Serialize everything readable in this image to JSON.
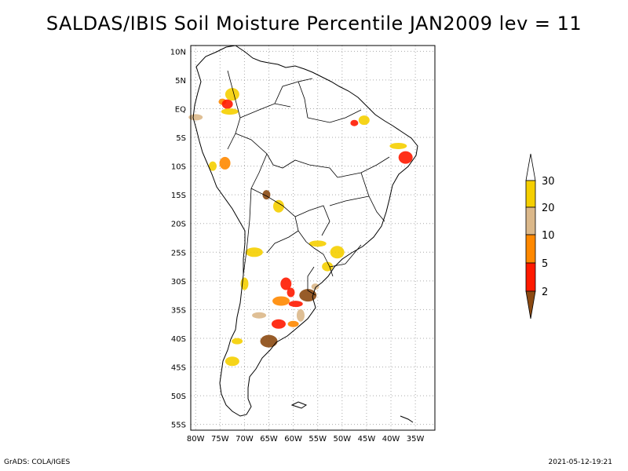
{
  "title": "SALDAS/IBIS Soil Moisture Percentile JAN2009 lev = 11",
  "footer": {
    "left": "GrADS: COLA/IGES",
    "right": "2021-05-12-19:21"
  },
  "map": {
    "region": "South America",
    "lon_range": [
      -81,
      -31
    ],
    "lat_range": [
      -56,
      11
    ],
    "lat_ticks": [
      {
        "value": 10,
        "label": "10N"
      },
      {
        "value": 5,
        "label": "5N"
      },
      {
        "value": 0,
        "label": "EQ"
      },
      {
        "value": -5,
        "label": "5S"
      },
      {
        "value": -10,
        "label": "10S"
      },
      {
        "value": -15,
        "label": "15S"
      },
      {
        "value": -20,
        "label": "20S"
      },
      {
        "value": -25,
        "label": "25S"
      },
      {
        "value": -30,
        "label": "30S"
      },
      {
        "value": -35,
        "label": "35S"
      },
      {
        "value": -40,
        "label": "40S"
      },
      {
        "value": -45,
        "label": "45S"
      },
      {
        "value": -50,
        "label": "50S"
      },
      {
        "value": -55,
        "label": "55S"
      }
    ],
    "lon_ticks": [
      {
        "value": -80,
        "label": "80W"
      },
      {
        "value": -75,
        "label": "75W"
      },
      {
        "value": -70,
        "label": "70W"
      },
      {
        "value": -65,
        "label": "65W"
      },
      {
        "value": -60,
        "label": "60W"
      },
      {
        "value": -55,
        "label": "55W"
      },
      {
        "value": -50,
        "label": "50W"
      },
      {
        "value": -45,
        "label": "45W"
      },
      {
        "value": -40,
        "label": "40W"
      },
      {
        "value": -35,
        "label": "35W"
      }
    ],
    "dry_regions": [
      {
        "lon": -74.5,
        "lat": 1.2,
        "level": 5
      },
      {
        "lon": -73.5,
        "lat": 0.8,
        "level": 2
      },
      {
        "lon": -72.5,
        "lat": 2.5,
        "level": 20
      },
      {
        "lon": -73.0,
        "lat": -0.5,
        "level": 30
      },
      {
        "lon": -60.5,
        "lat": -32.0,
        "level": 2
      },
      {
        "lon": -61.5,
        "lat": -30.5,
        "level": 2
      },
      {
        "lon": -59.5,
        "lat": -34.0,
        "level": 2
      },
      {
        "lon": -62.5,
        "lat": -33.5,
        "level": 5
      },
      {
        "lon": -58.5,
        "lat": -36.0,
        "level": 10
      },
      {
        "lon": -60.0,
        "lat": -37.5,
        "level": 5
      },
      {
        "lon": -63.0,
        "lat": -37.5,
        "level": 2
      },
      {
        "lon": -57.0,
        "lat": -32.5,
        "level": 0
      },
      {
        "lon": -55.5,
        "lat": -31.0,
        "level": 10
      },
      {
        "lon": -53.0,
        "lat": -27.5,
        "level": 20
      },
      {
        "lon": -51.0,
        "lat": -25.0,
        "level": 20
      },
      {
        "lon": -55.0,
        "lat": -23.5,
        "level": 30
      },
      {
        "lon": -65.5,
        "lat": -15.0,
        "level": 0
      },
      {
        "lon": -63.0,
        "lat": -17.0,
        "level": 20
      },
      {
        "lon": -67.0,
        "lat": -36.0,
        "level": 10
      },
      {
        "lon": -68.0,
        "lat": -25.0,
        "level": 20
      },
      {
        "lon": -70.0,
        "lat": -30.5,
        "level": 30
      },
      {
        "lon": -71.5,
        "lat": -40.5,
        "level": 20
      },
      {
        "lon": -72.5,
        "lat": -44.0,
        "level": 30
      },
      {
        "lon": -65.0,
        "lat": -40.5,
        "level": 0
      },
      {
        "lon": -47.5,
        "lat": -2.5,
        "level": 2
      },
      {
        "lon": -45.5,
        "lat": -2.0,
        "level": 20
      },
      {
        "lon": -37.0,
        "lat": -8.5,
        "level": 2
      },
      {
        "lon": -38.5,
        "lat": -6.5,
        "level": 20
      },
      {
        "lon": -76.5,
        "lat": -10.0,
        "level": 20
      },
      {
        "lon": -74.0,
        "lat": -9.5,
        "level": 5
      },
      {
        "lon": -80.0,
        "lat": -1.5,
        "level": 10
      }
    ]
  },
  "legend": {
    "labels": [
      "30",
      "20",
      "10",
      "5",
      "2"
    ],
    "colors": {
      "above_30": "#ffffff",
      "20_30": "#f5cf00",
      "10_20": "#dbb88a",
      "5_10": "#ff8800",
      "2_5": "#ff1a00",
      "below_2": "#8c4a12"
    }
  }
}
